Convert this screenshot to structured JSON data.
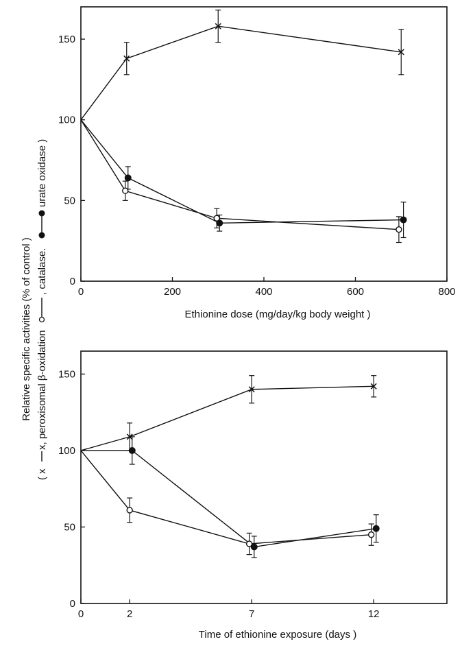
{
  "chart_data": [
    {
      "type": "line",
      "xlabel": "Ethionine dose (mg/day/kg body weight )",
      "xlim": [
        0,
        800
      ],
      "ylim": [
        0,
        170
      ],
      "xticks": [
        "0",
        "200",
        "400",
        "600",
        "800"
      ],
      "yticks": [
        "0",
        "50",
        "100",
        "150"
      ],
      "series": [
        {
          "marker": "cross",
          "x": [
            0,
            100,
            300,
            700
          ],
          "y": [
            100,
            138,
            158,
            142
          ],
          "err": [
            0,
            10,
            10,
            14
          ],
          "color": "#111111"
        },
        {
          "marker": "filled-circle",
          "x": [
            0,
            103,
            303,
            705
          ],
          "y": [
            100,
            64,
            36,
            38
          ],
          "err": [
            0,
            7,
            5,
            11
          ],
          "color": "#111111"
        },
        {
          "marker": "open-circle",
          "x": [
            0,
            97,
            297,
            695
          ],
          "y": [
            100,
            56,
            39,
            32
          ],
          "err": [
            0,
            6,
            6,
            8
          ],
          "color": "#111111"
        }
      ]
    },
    {
      "type": "line",
      "xlabel": "Time of ethionine exposure (days )",
      "xlim": [
        0,
        15
      ],
      "ylim": [
        0,
        165
      ],
      "xticks": [
        "0",
        "2",
        "7",
        "12"
      ],
      "xtick_values": [
        0,
        2,
        7,
        12
      ],
      "yticks": [
        "0",
        "50",
        "100",
        "150"
      ],
      "series": [
        {
          "marker": "cross",
          "x": [
            0,
            2,
            7,
            12
          ],
          "y": [
            100,
            109,
            140,
            142
          ],
          "err": [
            0,
            9,
            9,
            7
          ],
          "color": "#111111"
        },
        {
          "marker": "filled-circle",
          "x": [
            0,
            2.1,
            7.1,
            12.1
          ],
          "y": [
            100,
            100,
            37,
            49
          ],
          "err": [
            0,
            9,
            7,
            9
          ],
          "color": "#111111"
        },
        {
          "marker": "open-circle",
          "x": [
            0,
            2,
            6.9,
            11.9
          ],
          "y": [
            100,
            61,
            39,
            45
          ],
          "err": [
            0,
            8,
            7,
            7
          ],
          "color": "#111111"
        }
      ]
    }
  ],
  "y_axis_label": {
    "line1": "Relative specific activities (% of control )",
    "line2_prefix": "( x",
    "line2_a": "x, peroxisomal  β-oxidation",
    "line2_b": ", catalase.",
    "line2_c": "urate oxidase )"
  }
}
